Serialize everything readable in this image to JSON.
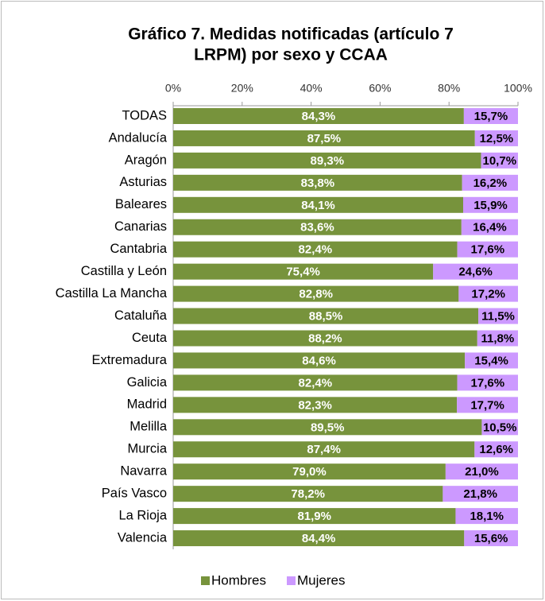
{
  "chart_data": {
    "type": "bar",
    "orientation": "horizontal",
    "stacked": true,
    "title": [
      "Gráfico 7. Medidas notificadas (artículo 7",
      "LRPM) por sexo y CCAA"
    ],
    "categories": [
      "TODAS",
      "Andalucía",
      "Aragón",
      "Asturias",
      "Baleares",
      "Canarias",
      "Cantabria",
      "Castilla y León",
      "Castilla La Mancha",
      "Cataluña",
      "Ceuta",
      "Extremadura",
      "Galicia",
      "Madrid",
      "Melilla",
      "Murcia",
      "Navarra",
      "País Vasco",
      "La Rioja",
      "Valencia"
    ],
    "series": [
      {
        "name": "Hombres",
        "color": "#77933c",
        "values": [
          84.3,
          87.5,
          89.3,
          83.8,
          84.1,
          83.6,
          82.4,
          75.4,
          82.8,
          88.5,
          88.2,
          84.6,
          82.4,
          82.3,
          89.5,
          87.4,
          79.0,
          78.2,
          81.9,
          84.4
        ],
        "value_labels": [
          "84,3%",
          "87,5%",
          "89,3%",
          "83,8%",
          "84,1%",
          "83,6%",
          "82,4%",
          "75,4%",
          "82,8%",
          "88,5%",
          "88,2%",
          "84,6%",
          "82,4%",
          "82,3%",
          "89,5%",
          "87,4%",
          "79,0%",
          "78,2%",
          "81,9%",
          "84,4%"
        ]
      },
      {
        "name": "Mujeres",
        "color": "#cc99ff",
        "values": [
          15.7,
          12.5,
          10.7,
          16.2,
          15.9,
          16.4,
          17.6,
          24.6,
          17.2,
          11.5,
          11.8,
          15.4,
          17.6,
          17.7,
          10.5,
          12.6,
          21.0,
          21.8,
          18.1,
          15.6
        ],
        "value_labels": [
          "15,7%",
          "12,5%",
          "10,7%",
          "16,2%",
          "15,9%",
          "16,4%",
          "17,6%",
          "24,6%",
          "17,2%",
          "11,5%",
          "11,8%",
          "15,4%",
          "17,6%",
          "17,7%",
          "10,5%",
          "12,6%",
          "21,0%",
          "21,8%",
          "18,1%",
          "15,6%"
        ]
      }
    ],
    "xlim": [
      0,
      100
    ],
    "xticks": [
      {
        "value": 0,
        "label": "0%"
      },
      {
        "value": 20,
        "label": "20%"
      },
      {
        "value": 40,
        "label": "40%"
      },
      {
        "value": 60,
        "label": "60%"
      },
      {
        "value": 80,
        "label": "80%"
      },
      {
        "value": 100,
        "label": "100%"
      }
    ],
    "legend": "bottom"
  }
}
